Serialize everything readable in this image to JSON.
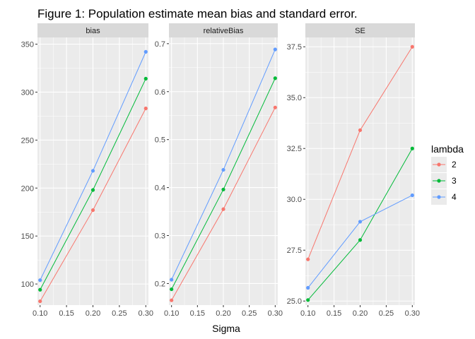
{
  "chart_data": {
    "type": "line",
    "title": "Figure 1: Population estimate mean bias and standard error.",
    "xlabel": "Sigma",
    "ylabel": "",
    "x": [
      0.1,
      0.2,
      0.3
    ],
    "xlim": [
      0.095,
      0.305
    ],
    "xticks": [
      "0.10",
      "0.15",
      "0.20",
      "0.25",
      "0.30"
    ],
    "legend": {
      "title": "lambda",
      "position": "right",
      "entries": [
        "2",
        "3",
        "4"
      ]
    },
    "colors": {
      "2": "#F8766D",
      "3": "#00BA38",
      "4": "#619CFF",
      "panel_bg": "#EBEBEB",
      "strip_bg": "#D9D9D9",
      "grid": "#FFFFFF"
    },
    "grid": true,
    "panels": [
      {
        "strip": "bias",
        "ylim": [
          78,
          357
        ],
        "yticks": [
          "100",
          "150",
          "200",
          "250",
          "300",
          "350"
        ],
        "series": [
          {
            "name": "2",
            "values": [
              82,
              177,
              283
            ]
          },
          {
            "name": "3",
            "values": [
              94,
              198,
              314
            ]
          },
          {
            "name": "4",
            "values": [
              104,
              218,
              342
            ]
          }
        ]
      },
      {
        "strip": "relativeBias",
        "ylim": [
          0.155,
          0.713
        ],
        "yticks": [
          "0.2",
          "0.3",
          "0.4",
          "0.5",
          "0.6",
          "0.7"
        ],
        "series": [
          {
            "name": "2",
            "values": [
              0.165,
              0.355,
              0.567
            ]
          },
          {
            "name": "3",
            "values": [
              0.188,
              0.396,
              0.628
            ]
          },
          {
            "name": "4",
            "values": [
              0.208,
              0.437,
              0.688
            ]
          }
        ]
      },
      {
        "strip": "SE",
        "ylim": [
          24.8,
          37.96
        ],
        "yticks": [
          "25.0",
          "27.5",
          "30.0",
          "32.5",
          "35.0",
          "37.5"
        ],
        "series": [
          {
            "name": "2",
            "values": [
              27.05,
              33.4,
              37.5
            ]
          },
          {
            "name": "3",
            "values": [
              25.05,
              28.0,
              32.5
            ]
          },
          {
            "name": "4",
            "values": [
              25.65,
              28.9,
              30.2
            ]
          }
        ]
      }
    ]
  }
}
